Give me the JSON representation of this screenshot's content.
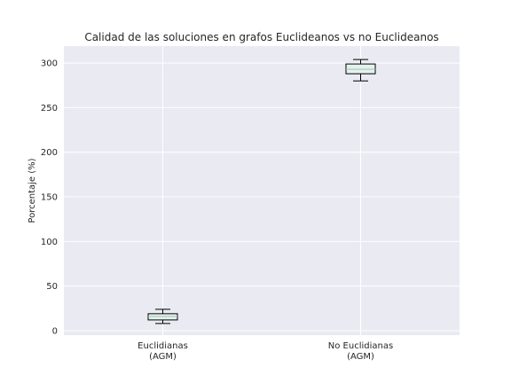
{
  "chart_data": {
    "type": "box",
    "title": "Calidad de las soluciones en grafos Euclideanos vs no Euclideanos",
    "xlabel": "",
    "ylabel": "Porcentaje (%)",
    "ylim": [
      -5,
      319
    ],
    "yticks": [
      0,
      50,
      100,
      150,
      200,
      250,
      300
    ],
    "grid": true,
    "categories": [
      [
        "Euclidianas",
        "(AGM)"
      ],
      [
        "No Euclidianas",
        "(AGM)"
      ]
    ],
    "boxes": [
      {
        "whisker_low": 8,
        "q1": 12,
        "median": 16,
        "q3": 19,
        "whisker_high": 24
      },
      {
        "whisker_low": 280,
        "q1": 288,
        "median": 293,
        "q3": 299,
        "whisker_high": 304
      }
    ],
    "colors": {
      "background": "#eaeaf2",
      "grid": "#ffffff",
      "box_fill": "#e3f1ec",
      "box_edge": "#000000",
      "median": "#9cc8b8",
      "text": "#262626"
    }
  }
}
